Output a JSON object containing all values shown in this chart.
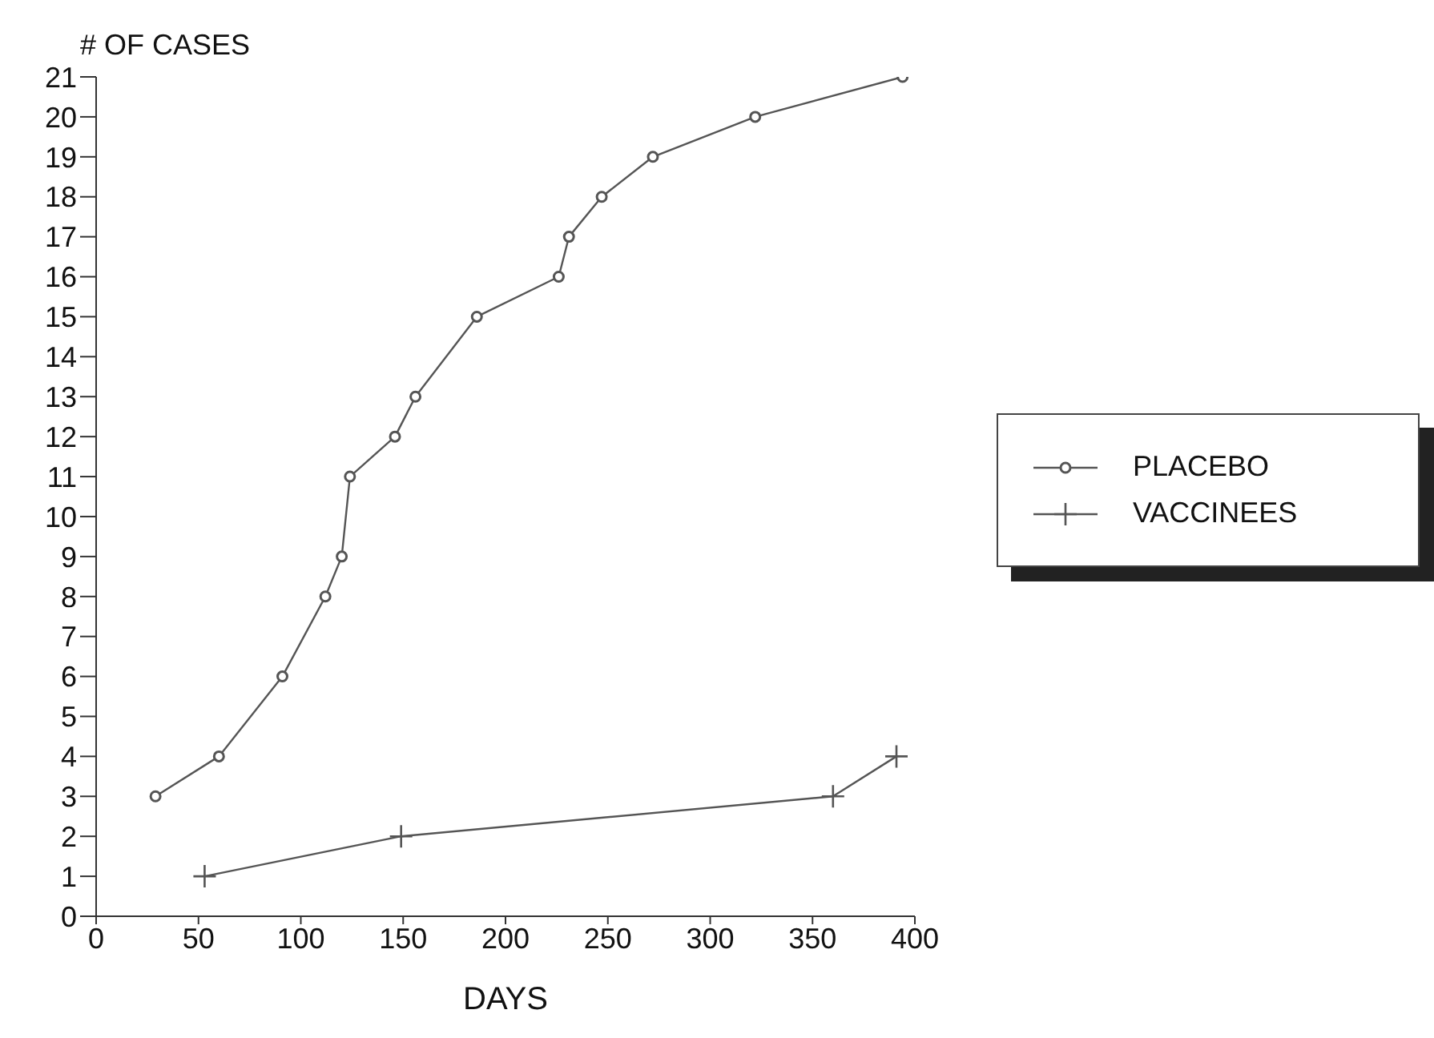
{
  "chart_data": {
    "type": "line",
    "ylabel": "# OF CASES",
    "xlabel": "DAYS",
    "xlim": [
      0,
      400
    ],
    "xticks": [
      0,
      50,
      100,
      150,
      200,
      250,
      300,
      350,
      400
    ],
    "ylim": [
      0,
      21
    ],
    "yticks": [
      0,
      1,
      2,
      3,
      4,
      5,
      6,
      7,
      8,
      9,
      10,
      11,
      12,
      13,
      14,
      15,
      16,
      17,
      18,
      19,
      20,
      21
    ],
    "grid": false,
    "legend": "right",
    "series": [
      {
        "name": "PLACEBO",
        "color": "#555555",
        "marker": "circle",
        "x": [
          29,
          60,
          91,
          112,
          120,
          124,
          146,
          156,
          186,
          226,
          231,
          247,
          272,
          322,
          394
        ],
        "values": [
          3,
          4,
          6,
          8,
          9,
          11,
          12,
          13,
          15,
          16,
          17,
          18,
          19,
          20,
          21
        ]
      },
      {
        "name": "VACCINEES",
        "color": "#555555",
        "marker": "cross",
        "x": [
          53,
          149,
          360,
          391
        ],
        "values": [
          1,
          2,
          3,
          4
        ]
      }
    ]
  }
}
